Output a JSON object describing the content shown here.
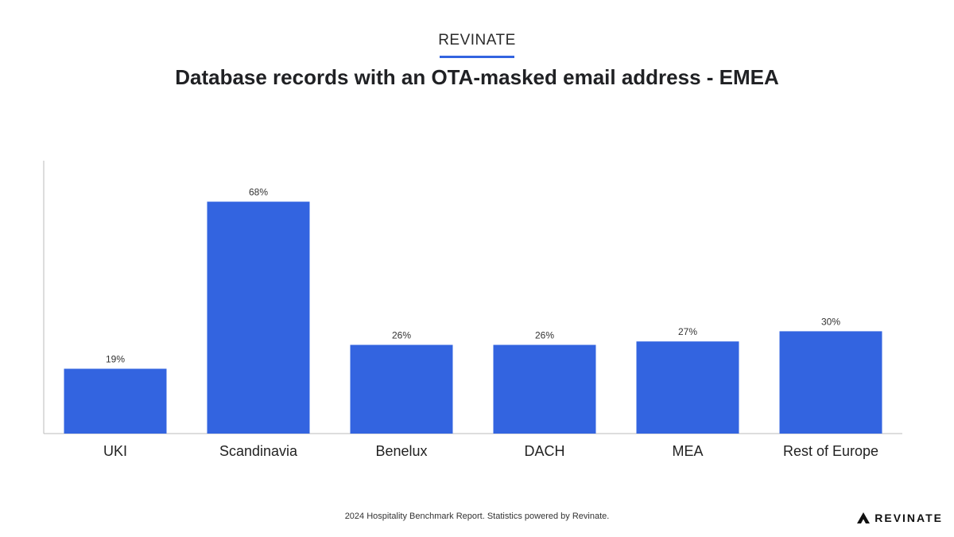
{
  "header": {
    "brand": "REVINATE",
    "title": "Database records with an OTA-masked email address - EMEA"
  },
  "chart_data": {
    "type": "bar",
    "title": "Database records with an OTA-masked email address - EMEA",
    "categories": [
      "UKI",
      "Scandinavia",
      "Benelux",
      "DACH",
      "MEA",
      "Rest of Europe"
    ],
    "values": [
      19,
      68,
      26,
      26,
      27,
      30
    ],
    "data_labels": [
      "19%",
      "68%",
      "26%",
      "26%",
      "27%",
      "30%"
    ],
    "unit": "%",
    "xlabel": "",
    "ylabel": "",
    "ylim": [
      0,
      80
    ],
    "grid": false,
    "legend": "none",
    "bar_color": "#3364e0"
  },
  "footer": {
    "note": "2024 Hospitality Benchmark Report. Statistics powered by Revinate.",
    "logo_text": "REVINATE"
  }
}
